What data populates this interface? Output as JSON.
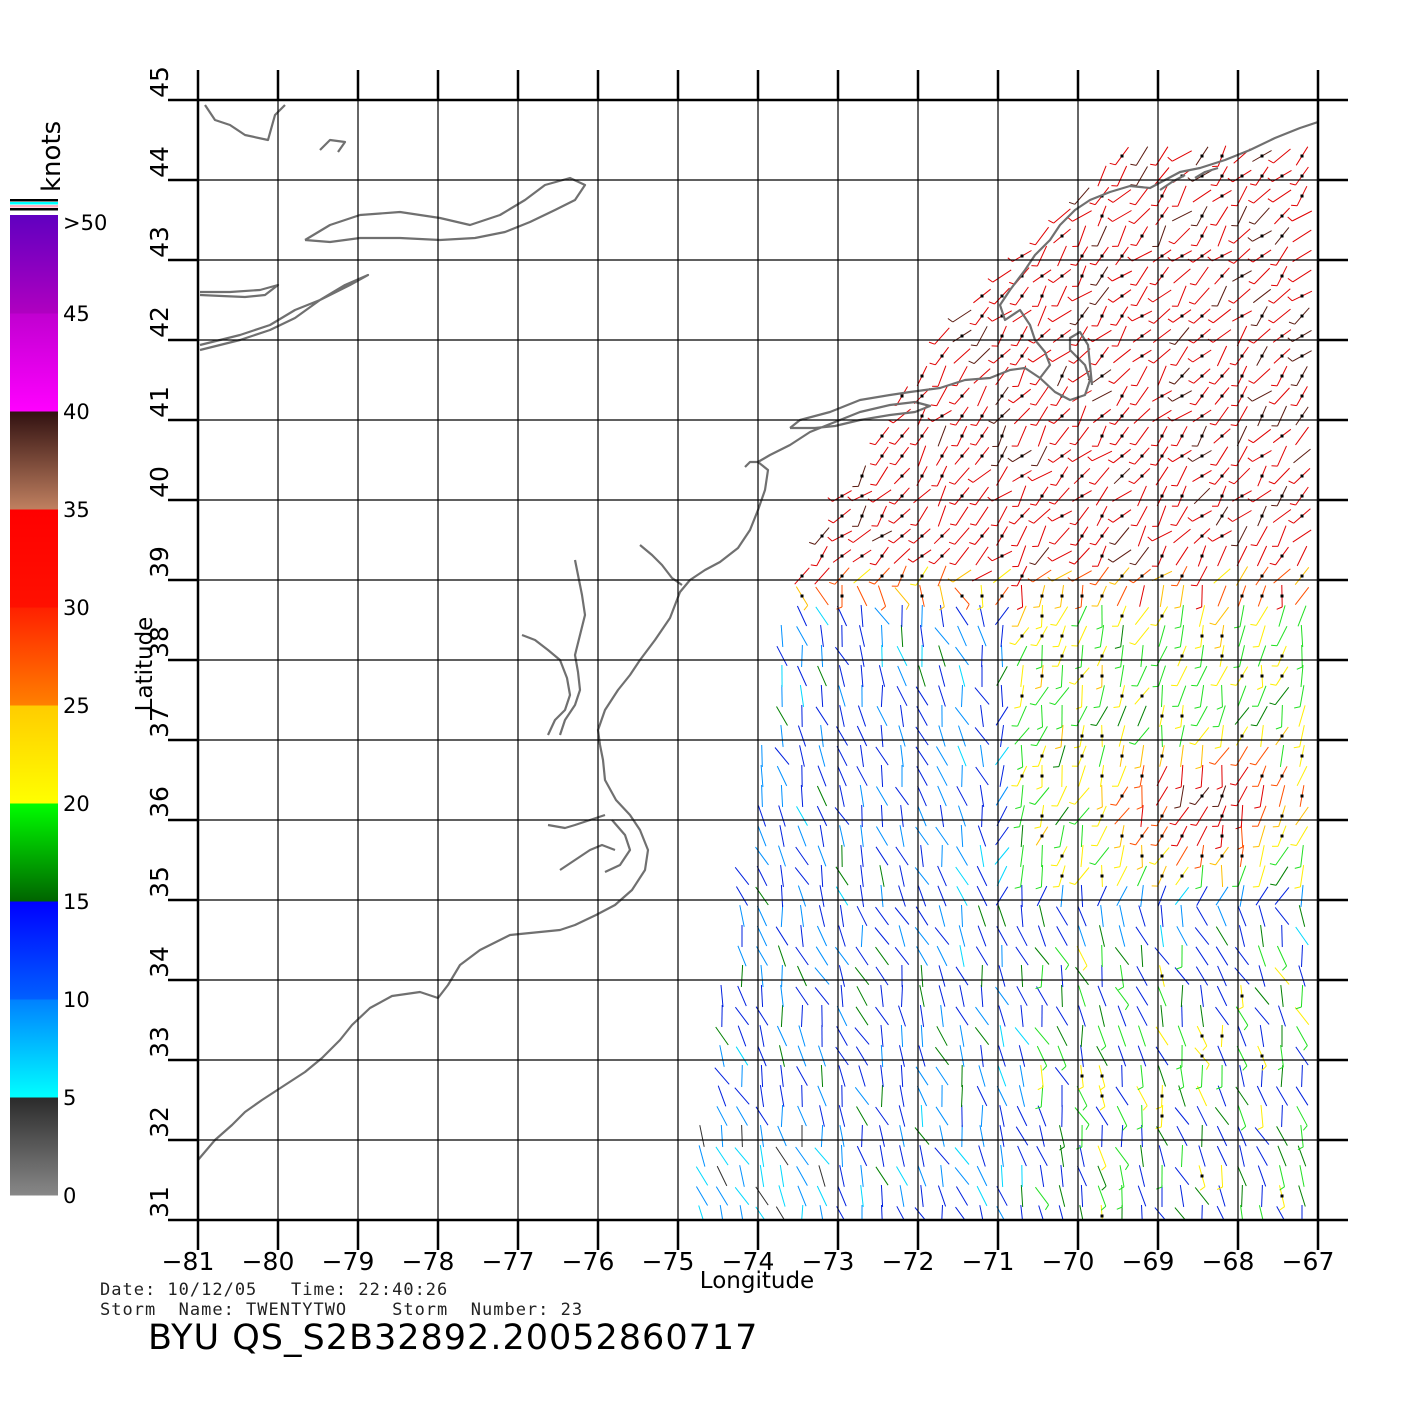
{
  "map": {
    "x_axis_label": "Longitude",
    "y_axis_label": "Latitude",
    "lon_range": [
      -81,
      -67
    ],
    "lat_range": [
      31,
      45
    ],
    "lon_ticks": [
      "−81",
      "−80",
      "−79",
      "−78",
      "−77",
      "−76",
      "−75",
      "−74",
      "−73",
      "−72",
      "−71",
      "−70",
      "−69",
      "−68",
      "−67"
    ],
    "lat_ticks": [
      "31",
      "32",
      "33",
      "34",
      "35",
      "36",
      "37",
      "38",
      "39",
      "40",
      "41",
      "42",
      "43",
      "44",
      "45"
    ],
    "grid": true,
    "coastline_color": "#707070"
  },
  "colorbar": {
    "unit_label": "knots",
    "tick_labels": [
      "0",
      "5",
      "10",
      "15",
      "20",
      "25",
      "30",
      "35",
      "40",
      "45",
      ">50"
    ],
    "bands": [
      {
        "from": 0,
        "to": 5,
        "colors": [
          "#888888",
          "#2a2a2a"
        ]
      },
      {
        "from": 5,
        "to": 10,
        "colors": [
          "#00ffff",
          "#0080ff"
        ]
      },
      {
        "from": 10,
        "to": 15,
        "colors": [
          "#0060ff",
          "#0000ff"
        ]
      },
      {
        "from": 15,
        "to": 20,
        "colors": [
          "#006400",
          "#00ff00"
        ]
      },
      {
        "from": 20,
        "to": 25,
        "colors": [
          "#ffff00",
          "#ffcc00"
        ]
      },
      {
        "from": 25,
        "to": 30,
        "colors": [
          "#ff8000",
          "#ff2000"
        ]
      },
      {
        "from": 30,
        "to": 35,
        "colors": [
          "#ff1000",
          "#ff0000"
        ]
      },
      {
        "from": 35,
        "to": 40,
        "colors": [
          "#c08060",
          "#301010"
        ]
      },
      {
        "from": 40,
        "to": 45,
        "colors": [
          "#ff00ff",
          "#c000d0"
        ]
      },
      {
        "from": 45,
        "to": 50,
        "colors": [
          "#b000c0",
          "#6000c0"
        ]
      }
    ]
  },
  "footer": {
    "line1": "Date: 10/12/05   Time: 22:40:26",
    "line2": "Storm  Name: TWENTYTWO    Storm  Number: 23",
    "title": "BYU  QS_S2B32892.20052860717"
  }
}
